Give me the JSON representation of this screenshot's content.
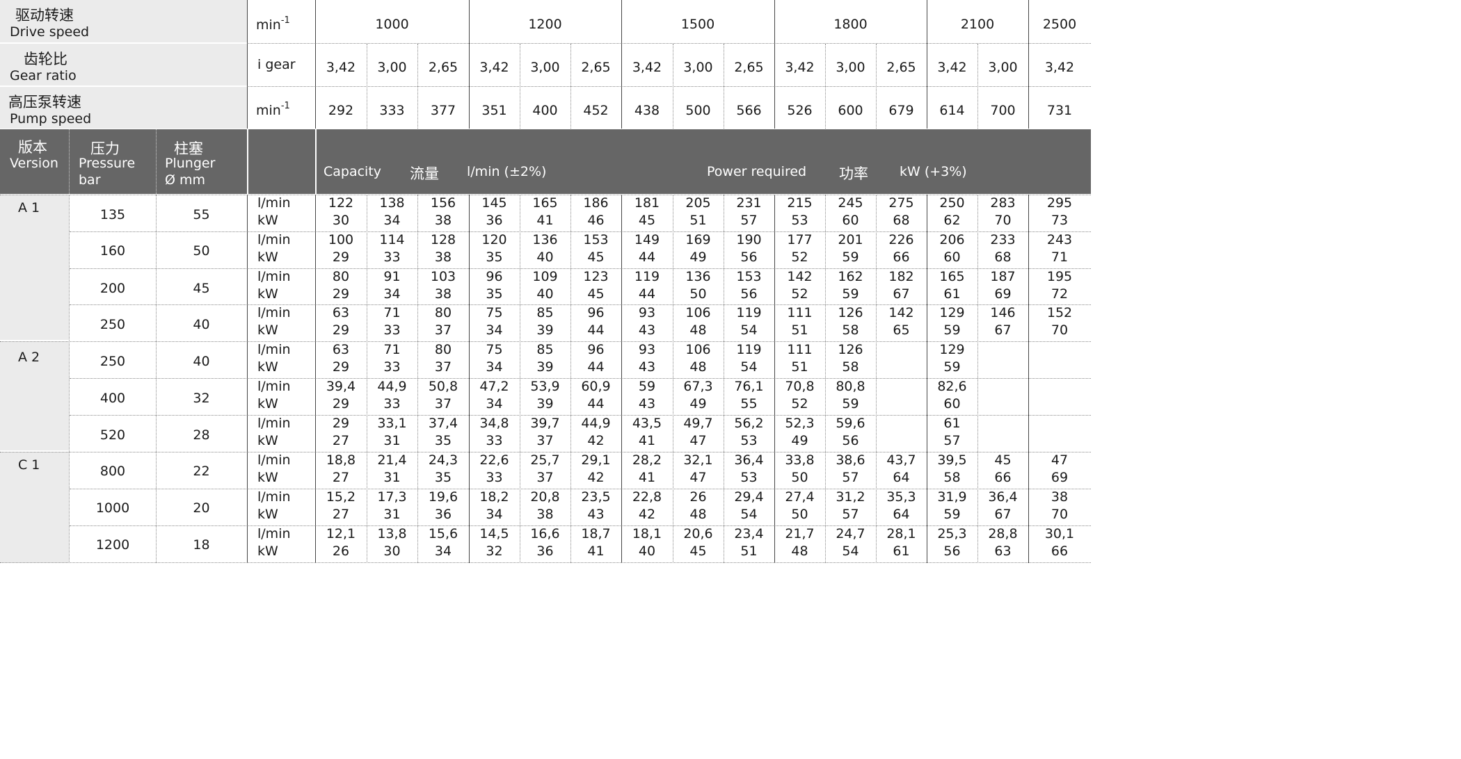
{
  "header": {
    "drive_speed": {
      "cn": "驱动转速",
      "en": "Drive speed",
      "unit": "min",
      "unit_sup": "-1",
      "values": [
        "1000",
        "1200",
        "1500",
        "1800",
        "2100",
        "2500"
      ]
    },
    "gear_ratio": {
      "cn": "齿轮比",
      "en": "Gear ratio",
      "unit": "i gear",
      "values": [
        "3,42",
        "3,00",
        "2,65",
        "3,42",
        "3,00",
        "2,65",
        "3,42",
        "3,00",
        "2,65",
        "3,42",
        "3,00",
        "2,65",
        "3,42",
        "3,00",
        "3,42"
      ]
    },
    "pump_speed": {
      "cn": "高压泵转速",
      "en": "Pump speed",
      "unit": "min",
      "unit_sup": "-1",
      "values": [
        "292",
        "333",
        "377",
        "351",
        "400",
        "452",
        "438",
        "500",
        "566",
        "526",
        "600",
        "679",
        "614",
        "700",
        "731"
      ]
    }
  },
  "band": {
    "version": {
      "cn": "版本",
      "en": "Version"
    },
    "pressure": {
      "cn": "压力",
      "en": "Pressure",
      "unit": "bar"
    },
    "plunger": {
      "cn": "柱塞",
      "en": "Plunger",
      "unit": "Ø mm"
    },
    "capacity_en": "Capacity",
    "capacity_cn": "流量",
    "capacity_unit": "l/min (±2%)",
    "power_en": "Power required",
    "power_cn": "功率",
    "power_unit": "kW (+3%)"
  },
  "units": {
    "flow": "l/min",
    "power": "kW"
  },
  "groups": [
    {
      "version": "A 1",
      "rows": [
        {
          "pressure": "135",
          "plunger": "55",
          "flow": [
            "122",
            "138",
            "156",
            "145",
            "165",
            "186",
            "181",
            "205",
            "231",
            "215",
            "245",
            "275",
            "250",
            "283",
            "295"
          ],
          "power": [
            "30",
            "34",
            "38",
            "36",
            "41",
            "46",
            "45",
            "51",
            "57",
            "53",
            "60",
            "68",
            "62",
            "70",
            "73"
          ]
        },
        {
          "pressure": "160",
          "plunger": "50",
          "flow": [
            "100",
            "114",
            "128",
            "120",
            "136",
            "153",
            "149",
            "169",
            "190",
            "177",
            "201",
            "226",
            "206",
            "233",
            "243"
          ],
          "power": [
            "29",
            "33",
            "38",
            "35",
            "40",
            "45",
            "44",
            "49",
            "56",
            "52",
            "59",
            "66",
            "60",
            "68",
            "71"
          ]
        },
        {
          "pressure": "200",
          "plunger": "45",
          "flow": [
            "80",
            "91",
            "103",
            "96",
            "109",
            "123",
            "119",
            "136",
            "153",
            "142",
            "162",
            "182",
            "165",
            "187",
            "195"
          ],
          "power": [
            "29",
            "34",
            "38",
            "35",
            "40",
            "45",
            "44",
            "50",
            "56",
            "52",
            "59",
            "67",
            "61",
            "69",
            "72"
          ]
        },
        {
          "pressure": "250",
          "plunger": "40",
          "flow": [
            "63",
            "71",
            "80",
            "75",
            "85",
            "96",
            "93",
            "106",
            "119",
            "111",
            "126",
            "142",
            "129",
            "146",
            "152"
          ],
          "power": [
            "29",
            "33",
            "37",
            "34",
            "39",
            "44",
            "43",
            "48",
            "54",
            "51",
            "58",
            "65",
            "59",
            "67",
            "70"
          ]
        }
      ]
    },
    {
      "version": "A 2",
      "rows": [
        {
          "pressure": "250",
          "plunger": "40",
          "flow": [
            "63",
            "71",
            "80",
            "75",
            "85",
            "96",
            "93",
            "106",
            "119",
            "111",
            "126",
            "",
            "129",
            "",
            ""
          ],
          "power": [
            "29",
            "33",
            "37",
            "34",
            "39",
            "44",
            "43",
            "48",
            "54",
            "51",
            "58",
            "",
            "59",
            "",
            ""
          ]
        },
        {
          "pressure": "400",
          "plunger": "32",
          "flow": [
            "39,4",
            "44,9",
            "50,8",
            "47,2",
            "53,9",
            "60,9",
            "59",
            "67,3",
            "76,1",
            "70,8",
            "80,8",
            "",
            "82,6",
            "",
            ""
          ],
          "power": [
            "29",
            "33",
            "37",
            "34",
            "39",
            "44",
            "43",
            "49",
            "55",
            "52",
            "59",
            "",
            "60",
            "",
            ""
          ]
        },
        {
          "pressure": "520",
          "plunger": "28",
          "flow": [
            "29",
            "33,1",
            "37,4",
            "34,8",
            "39,7",
            "44,9",
            "43,5",
            "49,7",
            "56,2",
            "52,3",
            "59,6",
            "",
            "61",
            "",
            ""
          ],
          "power": [
            "27",
            "31",
            "35",
            "33",
            "37",
            "42",
            "41",
            "47",
            "53",
            "49",
            "56",
            "",
            "57",
            "",
            ""
          ]
        }
      ]
    },
    {
      "version": "C 1",
      "rows": [
        {
          "pressure": "800",
          "plunger": "22",
          "flow": [
            "18,8",
            "21,4",
            "24,3",
            "22,6",
            "25,7",
            "29,1",
            "28,2",
            "32,1",
            "36,4",
            "33,8",
            "38,6",
            "43,7",
            "39,5",
            "45",
            "47"
          ],
          "power": [
            "27",
            "31",
            "35",
            "33",
            "37",
            "42",
            "41",
            "47",
            "53",
            "50",
            "57",
            "64",
            "58",
            "66",
            "69"
          ]
        },
        {
          "pressure": "1000",
          "plunger": "20",
          "flow": [
            "15,2",
            "17,3",
            "19,6",
            "18,2",
            "20,8",
            "23,5",
            "22,8",
            "26",
            "29,4",
            "27,4",
            "31,2",
            "35,3",
            "31,9",
            "36,4",
            "38"
          ],
          "power": [
            "27",
            "31",
            "36",
            "34",
            "38",
            "43",
            "42",
            "48",
            "54",
            "50",
            "57",
            "64",
            "59",
            "67",
            "70"
          ]
        },
        {
          "pressure": "1200",
          "plunger": "18",
          "flow": [
            "12,1",
            "13,8",
            "15,6",
            "14,5",
            "16,6",
            "18,7",
            "18,1",
            "20,6",
            "23,4",
            "21,7",
            "24,7",
            "28,1",
            "25,3",
            "28,8",
            "30,1"
          ],
          "power": [
            "26",
            "30",
            "34",
            "32",
            "36",
            "41",
            "40",
            "45",
            "51",
            "48",
            "54",
            "61",
            "56",
            "63",
            "66"
          ]
        }
      ]
    }
  ]
}
